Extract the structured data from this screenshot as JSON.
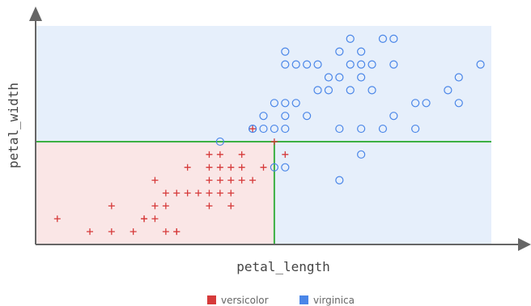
{
  "chart_data": {
    "type": "scatter",
    "xlabel": "petal_length",
    "ylabel": "petal_width",
    "xlim": [
      2.8,
      7.0
    ],
    "ylim": [
      0.9,
      2.6
    ],
    "split": {
      "x": 5.0,
      "y": 1.7
    },
    "regions": [
      {
        "class": "versicolor",
        "color": "#fae6e6",
        "x": [
          2.8,
          5.0
        ],
        "y": [
          0.9,
          1.7
        ]
      },
      {
        "class": "virginica",
        "color": "#e6effb",
        "x": [
          2.8,
          7.0
        ],
        "y": [
          1.7,
          2.6
        ]
      },
      {
        "class": "virginica",
        "color": "#e6effb",
        "x": [
          5.0,
          7.0
        ],
        "y": [
          0.9,
          1.7
        ]
      }
    ],
    "boundary_color": "#3cb043",
    "series": [
      {
        "name": "versicolor",
        "marker": "plus",
        "color": "#d63a3a",
        "points": [
          [
            3.0,
            1.1
          ],
          [
            3.3,
            1.0
          ],
          [
            3.5,
            1.0
          ],
          [
            3.7,
            1.0
          ],
          [
            3.5,
            1.2
          ],
          [
            3.8,
            1.1
          ],
          [
            3.9,
            1.1
          ],
          [
            3.9,
            1.2
          ],
          [
            3.9,
            1.4
          ],
          [
            4.0,
            1.0
          ],
          [
            4.0,
            1.2
          ],
          [
            4.0,
            1.3
          ],
          [
            4.1,
            1.0
          ],
          [
            4.1,
            1.3
          ],
          [
            4.2,
            1.3
          ],
          [
            4.3,
            1.3
          ],
          [
            4.4,
            1.2
          ],
          [
            4.4,
            1.3
          ],
          [
            4.5,
            1.3
          ],
          [
            4.6,
            1.3
          ],
          [
            4.5,
            1.4
          ],
          [
            4.6,
            1.4
          ],
          [
            4.7,
            1.4
          ],
          [
            4.4,
            1.4
          ],
          [
            4.2,
            1.5
          ],
          [
            4.5,
            1.5
          ],
          [
            4.6,
            1.5
          ],
          [
            4.7,
            1.5
          ],
          [
            4.4,
            1.6
          ],
          [
            4.5,
            1.6
          ],
          [
            4.7,
            1.6
          ],
          [
            4.6,
            1.2
          ],
          [
            4.8,
            1.4
          ],
          [
            4.9,
            1.5
          ],
          [
            5.0,
            1.7
          ],
          [
            4.8,
            1.8
          ],
          [
            5.1,
            1.6
          ],
          [
            4.1,
            1.0
          ],
          [
            3.8,
            1.1
          ],
          [
            4.4,
            1.5
          ]
        ]
      },
      {
        "name": "virginica",
        "marker": "circle",
        "color": "#4a86e8",
        "points": [
          [
            4.5,
            1.7
          ],
          [
            4.8,
            1.8
          ],
          [
            4.9,
            1.8
          ],
          [
            5.0,
            1.5
          ],
          [
            5.1,
            1.5
          ],
          [
            5.6,
            1.4
          ],
          [
            4.9,
            1.9
          ],
          [
            5.0,
            2.0
          ],
          [
            5.0,
            1.8
          ],
          [
            5.1,
            2.0
          ],
          [
            5.1,
            1.9
          ],
          [
            5.1,
            1.8
          ],
          [
            5.1,
            2.3
          ],
          [
            5.1,
            2.4
          ],
          [
            5.2,
            2.0
          ],
          [
            5.2,
            2.3
          ],
          [
            5.3,
            1.9
          ],
          [
            5.3,
            2.3
          ],
          [
            5.4,
            2.1
          ],
          [
            5.4,
            2.3
          ],
          [
            5.5,
            2.1
          ],
          [
            5.5,
            2.2
          ],
          [
            5.6,
            1.8
          ],
          [
            5.7,
            2.1
          ],
          [
            5.6,
            2.4
          ],
          [
            5.6,
            2.2
          ],
          [
            5.7,
            2.3
          ],
          [
            5.7,
            2.5
          ],
          [
            5.8,
            1.8
          ],
          [
            5.8,
            2.2
          ],
          [
            5.8,
            2.4
          ],
          [
            5.8,
            2.3
          ],
          [
            5.9,
            2.1
          ],
          [
            5.9,
            2.3
          ],
          [
            6.0,
            1.8
          ],
          [
            6.0,
            2.5
          ],
          [
            6.1,
            1.9
          ],
          [
            6.1,
            2.3
          ],
          [
            6.1,
            2.5
          ],
          [
            6.3,
            1.8
          ],
          [
            6.3,
            2.0
          ],
          [
            6.4,
            2.0
          ],
          [
            6.6,
            2.1
          ],
          [
            6.7,
            2.2
          ],
          [
            6.7,
            2.0
          ],
          [
            6.9,
            2.3
          ],
          [
            4.8,
            1.8
          ],
          [
            5.8,
            1.6
          ]
        ]
      }
    ],
    "legend": {
      "position": "bottom-center",
      "entries": [
        {
          "label": "versicolor",
          "color": "#d63a3a"
        },
        {
          "label": "virginica",
          "color": "#4a86e8"
        }
      ]
    }
  }
}
